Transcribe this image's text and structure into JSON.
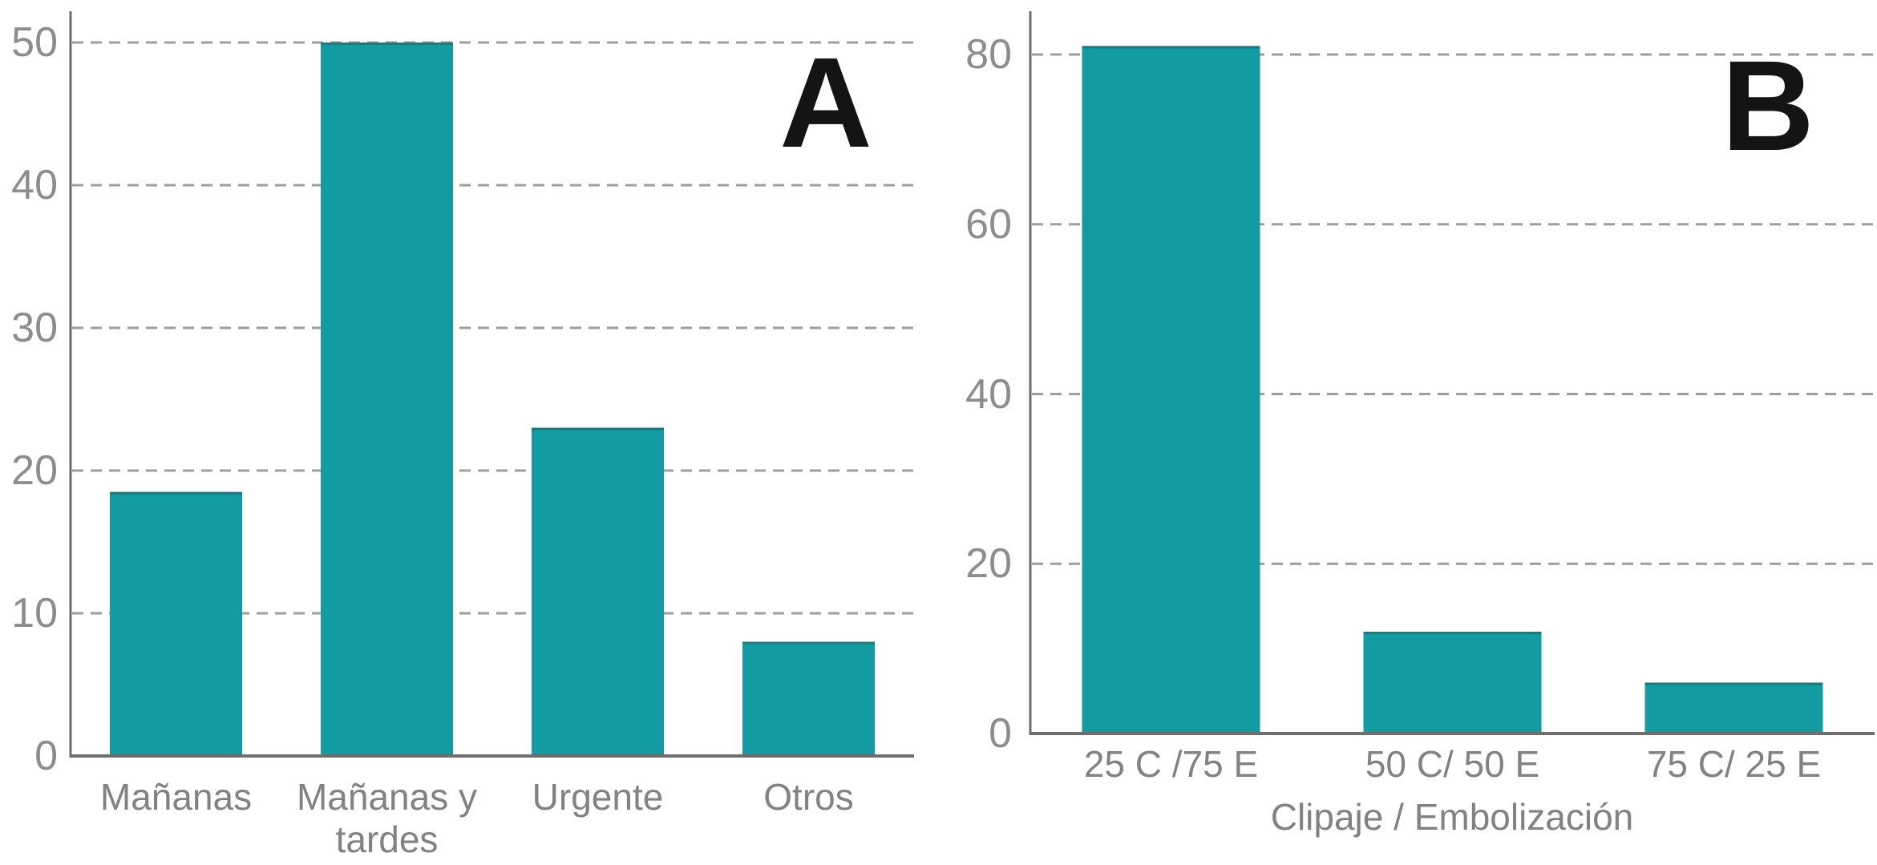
{
  "figure": {
    "panel_a_letter": "A",
    "panel_b_letter": "B"
  },
  "colors": {
    "bar": "#129BA0",
    "bar_top_edge": "#2F7276",
    "axis": "#6E6E6E",
    "grid": "#9E9E9E",
    "tick_text": "#8D8D8D",
    "label_text": "#828282",
    "panel_letter": "#141414"
  },
  "chart_data": [
    {
      "id": "A",
      "type": "bar",
      "panel_label": "A",
      "categories": [
        "Mañanas",
        "Mañanas y tardes",
        "Urgente",
        "Otros"
      ],
      "values": [
        18.5,
        50,
        23,
        8
      ],
      "title": "",
      "xlabel": "",
      "ylabel": "",
      "ylim": [
        0,
        52
      ],
      "yticks": [
        0,
        10,
        20,
        30,
        40,
        50
      ],
      "grid": "horizontal-dashed",
      "legend": "none",
      "bar_color": "#129BA0"
    },
    {
      "id": "B",
      "type": "bar",
      "panel_label": "B",
      "categories": [
        "25 C /75 E",
        "50 C/ 50 E",
        "75 C/ 25 E"
      ],
      "values": [
        81,
        12,
        6
      ],
      "title": "",
      "xlabel": "Clipaje / Embolización",
      "ylabel": "",
      "ylim": [
        0,
        85
      ],
      "yticks": [
        0,
        20,
        40,
        60,
        80
      ],
      "grid": "horizontal-dashed",
      "legend": "none",
      "bar_color": "#129BA0"
    }
  ]
}
